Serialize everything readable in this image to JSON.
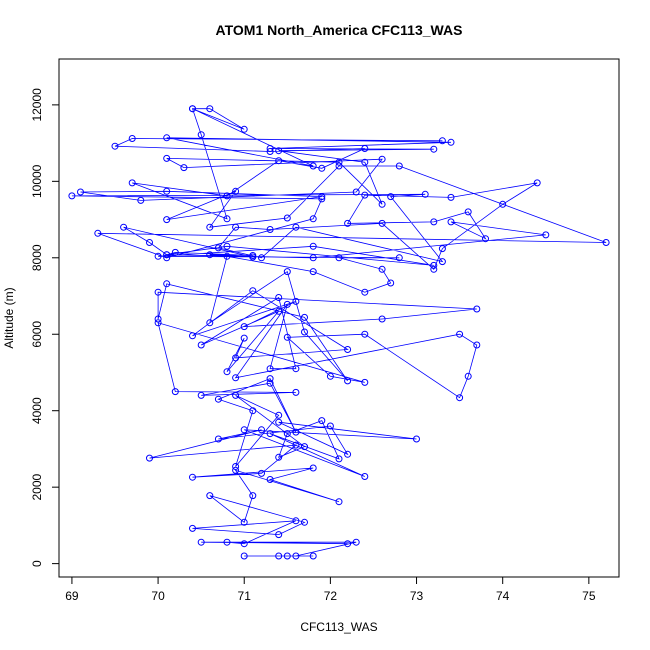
{
  "chart_data": {
    "type": "line",
    "title": "ATOM1 North_America CFC113_WAS",
    "xlabel": "CFC113_WAS",
    "ylabel": "Altitude (m)",
    "xlim": [
      68.85,
      75.35
    ],
    "ylim": [
      -350,
      13200
    ],
    "xticks": [
      69,
      70,
      71,
      72,
      73,
      74,
      75
    ],
    "yticks": [
      0,
      2000,
      4000,
      6000,
      8000,
      10000,
      12000
    ],
    "grid": false,
    "series_color": "#0000ff",
    "points": [
      [
        71.8,
        200
      ],
      [
        71.5,
        200
      ],
      [
        71.4,
        200
      ],
      [
        71.0,
        200
      ],
      [
        71.6,
        200
      ],
      [
        72.3,
        560
      ],
      [
        70.5,
        560
      ],
      [
        72.2,
        520
      ],
      [
        70.8,
        560
      ],
      [
        71.0,
        520
      ],
      [
        71.6,
        1120
      ],
      [
        70.4,
        920
      ],
      [
        71.4,
        760
      ],
      [
        71.7,
        1080
      ],
      [
        70.6,
        1780
      ],
      [
        71.0,
        1080
      ],
      [
        71.1,
        1780
      ],
      [
        70.9,
        2440
      ],
      [
        72.1,
        1620
      ],
      [
        71.3,
        2200
      ],
      [
        71.8,
        2500
      ],
      [
        70.4,
        2260
      ],
      [
        71.2,
        2360
      ],
      [
        71.6,
        3100
      ],
      [
        69.9,
        2760
      ],
      [
        71.2,
        3500
      ],
      [
        70.7,
        3260
      ],
      [
        72.0,
        3600
      ],
      [
        72.2,
        2860
      ],
      [
        71.4,
        3700
      ],
      [
        73.0,
        3260
      ],
      [
        71.0,
        3500
      ],
      [
        72.4,
        2280
      ],
      [
        71.3,
        3400
      ],
      [
        72.1,
        2740
      ],
      [
        71.9,
        3740
      ],
      [
        71.5,
        3400
      ],
      [
        71.4,
        2780
      ],
      [
        71.7,
        3060
      ],
      [
        70.9,
        4400
      ],
      [
        71.4,
        3880
      ],
      [
        70.9,
        2540
      ],
      [
        71.1,
        4000
      ],
      [
        70.7,
        4300
      ],
      [
        71.3,
        4840
      ],
      [
        71.6,
        3440
      ],
      [
        71.3,
        4720
      ],
      [
        70.5,
        4400
      ],
      [
        71.6,
        4480
      ],
      [
        70.2,
        4500
      ],
      [
        70.0,
        6300
      ],
      [
        72.4,
        4740
      ],
      [
        72.0,
        4900
      ],
      [
        71.5,
        5920
      ],
      [
        72.4,
        6000
      ],
      [
        73.5,
        4340
      ],
      [
        73.6,
        4900
      ],
      [
        73.7,
        5720
      ],
      [
        73.5,
        6000
      ],
      [
        70.9,
        4860
      ],
      [
        71.5,
        6780
      ],
      [
        71.3,
        5100
      ],
      [
        71.6,
        5100
      ],
      [
        71.4,
        6960
      ],
      [
        70.5,
        5720
      ],
      [
        71.4,
        6600
      ],
      [
        70.8,
        5020
      ],
      [
        71.0,
        5900
      ],
      [
        70.9,
        5380
      ],
      [
        72.2,
        5600
      ],
      [
        71.1,
        7140
      ],
      [
        70.4,
        5960
      ],
      [
        71.6,
        6860
      ],
      [
        71.0,
        6200
      ],
      [
        72.6,
        6400
      ],
      [
        73.7,
        6660
      ],
      [
        70.0,
        7100
      ],
      [
        70.0,
        6400
      ],
      [
        70.1,
        7320
      ],
      [
        71.7,
        6440
      ],
      [
        72.2,
        4780
      ],
      [
        71.7,
        6060
      ],
      [
        71.5,
        7640
      ],
      [
        70.6,
        6300
      ],
      [
        70.8,
        8040
      ],
      [
        71.8,
        7640
      ],
      [
        72.4,
        7100
      ],
      [
        72.7,
        7340
      ],
      [
        72.6,
        7700
      ],
      [
        72.1,
        8000
      ],
      [
        72.8,
        8000
      ],
      [
        70.0,
        8040
      ],
      [
        71.8,
        8300
      ],
      [
        73.2,
        7800
      ],
      [
        70.8,
        8300
      ],
      [
        70.1,
        8080
      ],
      [
        70.2,
        8140
      ],
      [
        71.1,
        8060
      ],
      [
        70.6,
        8080
      ],
      [
        71.1,
        8020
      ],
      [
        69.6,
        8800
      ],
      [
        69.9,
        8400
      ],
      [
        70.1,
        8080
      ],
      [
        71.8,
        8000
      ],
      [
        74.5,
        8600
      ],
      [
        73.4,
        8940
      ],
      [
        73.8,
        8500
      ],
      [
        73.6,
        9200
      ],
      [
        73.2,
        8940
      ],
      [
        72.2,
        8900
      ],
      [
        72.4,
        9640
      ],
      [
        73.4,
        9580
      ],
      [
        74.4,
        9960
      ],
      [
        74.0,
        9400
      ],
      [
        73.3,
        8240
      ],
      [
        73.2,
        7700
      ],
      [
        72.6,
        8900
      ],
      [
        71.3,
        8740
      ],
      [
        70.9,
        8800
      ],
      [
        70.7,
        8260
      ],
      [
        71.2,
        8000
      ],
      [
        71.6,
        8800
      ],
      [
        73.3,
        7900
      ],
      [
        72.7,
        9600
      ],
      [
        73.1,
        9660
      ],
      [
        69.0,
        9620
      ],
      [
        71.9,
        9540
      ],
      [
        71.8,
        9020
      ],
      [
        70.1,
        8000
      ],
      [
        69.3,
        8640
      ],
      [
        75.2,
        8400
      ],
      [
        72.8,
        10400
      ],
      [
        72.1,
        10400
      ],
      [
        71.5,
        9040
      ],
      [
        70.6,
        8800
      ],
      [
        70.9,
        9740
      ],
      [
        70.1,
        9000
      ],
      [
        71.9,
        9600
      ],
      [
        70.1,
        9740
      ],
      [
        69.1,
        9720
      ],
      [
        69.8,
        9500
      ],
      [
        72.3,
        9720
      ],
      [
        72.6,
        10580
      ],
      [
        70.3,
        10360
      ],
      [
        70.1,
        10600
      ],
      [
        72.1,
        10500
      ],
      [
        72.6,
        9400
      ],
      [
        72.4,
        10500
      ],
      [
        71.4,
        10800
      ],
      [
        73.2,
        10840
      ],
      [
        71.3,
        10860
      ],
      [
        73.4,
        11020
      ],
      [
        70.1,
        11140
      ],
      [
        71.8,
        10400
      ],
      [
        70.4,
        11900
      ],
      [
        71.0,
        11360
      ],
      [
        70.6,
        11900
      ],
      [
        70.4,
        11900
      ],
      [
        70.5,
        11220
      ],
      [
        70.8,
        9020
      ],
      [
        69.7,
        9960
      ],
      [
        70.8,
        9620
      ],
      [
        71.4,
        10540
      ],
      [
        71.9,
        10340
      ],
      [
        72.4,
        10860
      ],
      [
        71.3,
        10780
      ],
      [
        69.5,
        10920
      ],
      [
        69.7,
        11120
      ],
      [
        73.3,
        11060
      ]
    ]
  }
}
